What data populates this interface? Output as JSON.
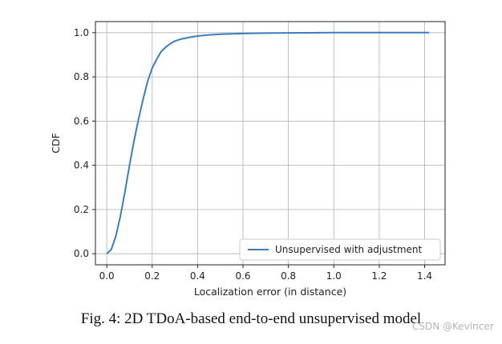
{
  "chart_data": {
    "type": "line",
    "title": "",
    "xlabel": "Localization error (in distance)",
    "ylabel": "CDF",
    "xlim": [
      -0.05,
      1.49
    ],
    "ylim": [
      -0.05,
      1.05
    ],
    "xticks": [
      0.0,
      0.2,
      0.4,
      0.6,
      0.8,
      1.0,
      1.2,
      1.4
    ],
    "yticks": [
      0.0,
      0.2,
      0.4,
      0.6,
      0.8,
      1.0
    ],
    "xtick_labels": [
      "0.0",
      "0.2",
      "0.4",
      "0.6",
      "0.8",
      "1.0",
      "1.2",
      "1.4"
    ],
    "ytick_labels": [
      "0.0",
      "0.2",
      "0.4",
      "0.6",
      "0.8",
      "1.0"
    ],
    "grid": true,
    "legend_position": "lower-right",
    "series": [
      {
        "name": "Unsupervised with adjustment",
        "color": "#3a7ebf",
        "x": [
          0.0,
          0.02,
          0.04,
          0.06,
          0.08,
          0.1,
          0.12,
          0.14,
          0.16,
          0.18,
          0.2,
          0.22,
          0.24,
          0.26,
          0.28,
          0.3,
          0.33,
          0.36,
          0.4,
          0.45,
          0.5,
          0.6,
          0.7,
          0.8,
          1.0,
          1.2,
          1.42
        ],
        "y": [
          0.0,
          0.02,
          0.08,
          0.17,
          0.28,
          0.4,
          0.51,
          0.61,
          0.7,
          0.78,
          0.84,
          0.88,
          0.915,
          0.935,
          0.95,
          0.962,
          0.972,
          0.978,
          0.985,
          0.99,
          0.993,
          0.996,
          0.998,
          0.999,
          1.0,
          1.0,
          1.0
        ]
      }
    ]
  },
  "caption": "Fig. 4: 2D TDoA-based end-to-end unsupervised model",
  "watermark": "CSDN @Kevincer"
}
